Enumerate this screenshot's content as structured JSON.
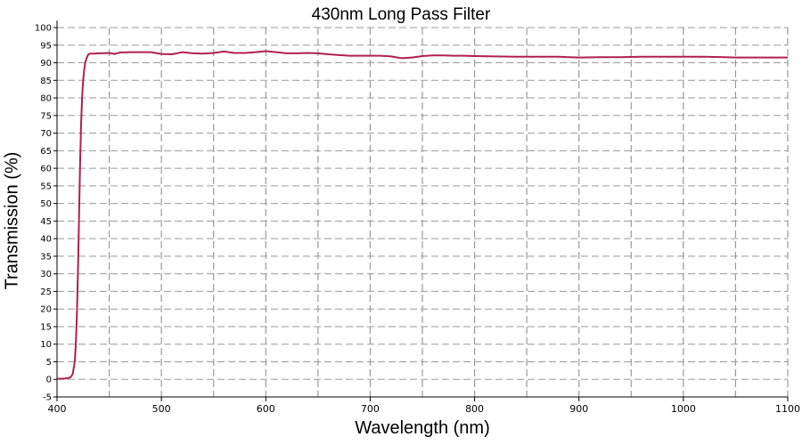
{
  "chart_data": {
    "type": "line",
    "title": "430nm Long Pass Filter",
    "xlabel": "Wavelength (nm)",
    "ylabel": "Transmission (%)",
    "xlim": [
      400,
      1100
    ],
    "ylim": [
      -5,
      100
    ],
    "x_ticks": [
      400,
      500,
      600,
      700,
      800,
      900,
      1000,
      1100
    ],
    "x_minor_grid": [
      450,
      550,
      650,
      750,
      850,
      950,
      1050
    ],
    "y_ticks": [
      -5,
      0,
      5,
      10,
      15,
      20,
      25,
      30,
      35,
      40,
      45,
      50,
      55,
      60,
      65,
      70,
      75,
      80,
      85,
      90,
      95,
      100
    ],
    "grid": true,
    "grid_style": "dashed",
    "line_color": "#b0204f",
    "series": [
      {
        "name": "",
        "x": [
          400,
          405,
          410,
          413,
          415,
          417,
          418,
          419,
          420,
          421,
          422,
          423,
          424,
          425,
          426,
          427,
          428,
          429,
          430,
          432,
          435,
          440,
          450,
          455,
          460,
          470,
          480,
          490,
          500,
          510,
          520,
          530,
          540,
          550,
          560,
          570,
          580,
          590,
          600,
          610,
          620,
          630,
          640,
          650,
          660,
          670,
          680,
          690,
          700,
          710,
          720,
          730,
          740,
          750,
          760,
          770,
          780,
          790,
          800,
          820,
          840,
          860,
          880,
          900,
          920,
          940,
          960,
          980,
          1000,
          1020,
          1040,
          1050,
          1070,
          1100
        ],
        "y": [
          0.2,
          0.2,
          0.3,
          0.6,
          1.5,
          5,
          10,
          18,
          30,
          45,
          60,
          72,
          80,
          85,
          88,
          90,
          91,
          91.8,
          92.4,
          92.6,
          92.6,
          92.7,
          92.8,
          92.5,
          92.9,
          93.0,
          93.0,
          93.0,
          92.5,
          92.4,
          93.0,
          92.7,
          92.6,
          92.8,
          93.2,
          92.8,
          92.8,
          93.0,
          93.3,
          93.0,
          92.7,
          92.7,
          92.8,
          92.7,
          92.4,
          92.2,
          92.0,
          92.0,
          92.0,
          92.0,
          91.8,
          91.3,
          91.5,
          91.9,
          92.1,
          92.1,
          92.0,
          92.0,
          91.9,
          91.8,
          91.7,
          91.7,
          91.7,
          91.5,
          91.6,
          91.6,
          91.7,
          91.7,
          91.7,
          91.7,
          91.6,
          91.5,
          91.5,
          91.5
        ]
      }
    ]
  }
}
